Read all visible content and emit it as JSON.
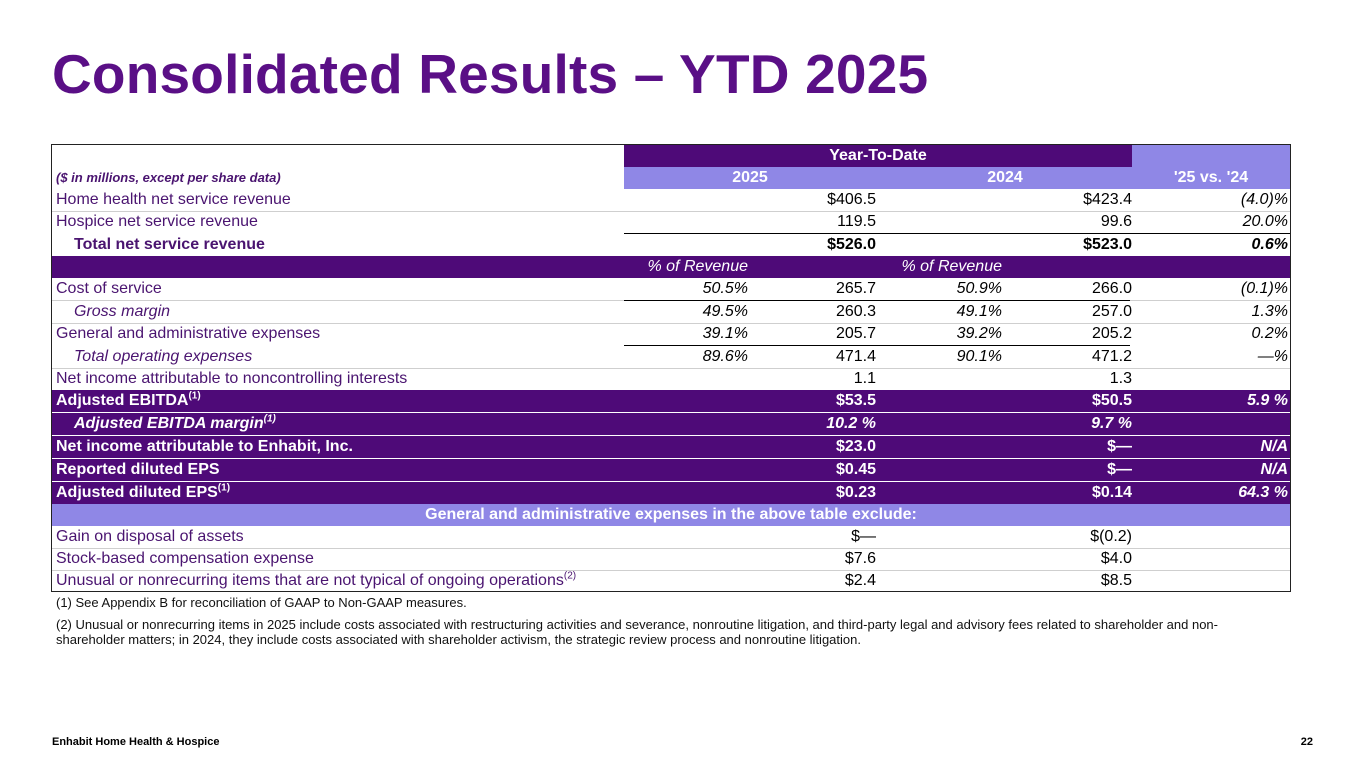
{
  "title": "Consolidated Results – YTD 2025",
  "header": {
    "group": "Year-To-Date",
    "units": "($ in millions, except per share data)",
    "y2025": "2025",
    "y2024": "2024",
    "change": "'25 vs. '24",
    "pct_2025": "% of Revenue",
    "pct_2024": "% of Revenue"
  },
  "rows": {
    "home_health": {
      "label": "Home health net service revenue",
      "v25": "$406.5",
      "v24": "$423.4",
      "chg": "(4.0)%"
    },
    "hospice": {
      "label": "Hospice net service revenue",
      "v25": "119.5",
      "v24": "99.6",
      "chg": "20.0%"
    },
    "total_rev": {
      "label": "Total net service revenue",
      "v25": "$526.0",
      "v24": "$523.0",
      "chg": "0.6%"
    },
    "cost": {
      "label": "Cost of service",
      "p25": "50.5%",
      "v25": "265.7",
      "p24": "50.9%",
      "v24": "266.0",
      "chg": "(0.1)%"
    },
    "gross": {
      "label": "Gross margin",
      "p25": "49.5%",
      "v25": "260.3",
      "p24": "49.1%",
      "v24": "257.0",
      "chg": "1.3%"
    },
    "ga": {
      "label": "General and administrative expenses",
      "p25": "39.1%",
      "v25": "205.7",
      "p24": "39.2%",
      "v24": "205.2",
      "chg": "0.2%"
    },
    "total_opex": {
      "label": "Total operating expenses",
      "p25": "89.6%",
      "v25": "471.4",
      "p24": "90.1%",
      "v24": "471.2",
      "chg": "—%"
    },
    "nci": {
      "label": "Net income attributable to noncontrolling interests",
      "v25": "1.1",
      "v24": "1.3"
    },
    "adj_ebitda": {
      "label": "Adjusted EBITDA",
      "sup": "(1)",
      "v25": "$53.5",
      "v24": "$50.5",
      "chg": "5.9 %"
    },
    "ebitda_margin": {
      "label": "Adjusted EBITDA margin",
      "sup": "(1)",
      "v25": "10.2 %",
      "v24": "9.7 %"
    },
    "net_income": {
      "label": "Net income attributable to Enhabit, Inc.",
      "v25": "$23.0",
      "v24": "$—",
      "chg": "N/A"
    },
    "reported_eps": {
      "label": "Reported diluted EPS",
      "v25": "$0.45",
      "v24": "$—",
      "chg": "N/A"
    },
    "adj_eps": {
      "label": "Adjusted diluted EPS",
      "sup": "(1)",
      "v25": "$0.23",
      "v24": "$0.14",
      "chg": "64.3 %"
    }
  },
  "exclude_header": "General and administrative expenses in the above table exclude:",
  "exclude": {
    "gain": {
      "label": "Gain on disposal of assets",
      "v25": "$—",
      "v24": "$(0.2)"
    },
    "stock": {
      "label": "Stock-based compensation expense",
      "v25": "$7.6",
      "v24": "$4.0"
    },
    "unusual": {
      "label": "Unusual or nonrecurring items that are not typical of ongoing operations",
      "sup": "(2)",
      "v25": "$2.4",
      "v24": "$8.5"
    }
  },
  "footnotes": {
    "f1": "(1) See Appendix B for reconciliation of GAAP to Non-GAAP measures.",
    "f2": "(2) Unusual or nonrecurring items in 2025 include costs associated with restructuring activities and severance, nonroutine litigation, and third-party legal and advisory fees related to shareholder and non-shareholder matters; in 2024, they include costs associated with shareholder activism, the strategic review process and nonroutine litigation."
  },
  "footer": {
    "brand": "Enhabit Home Health & Hospice",
    "page": "22"
  }
}
